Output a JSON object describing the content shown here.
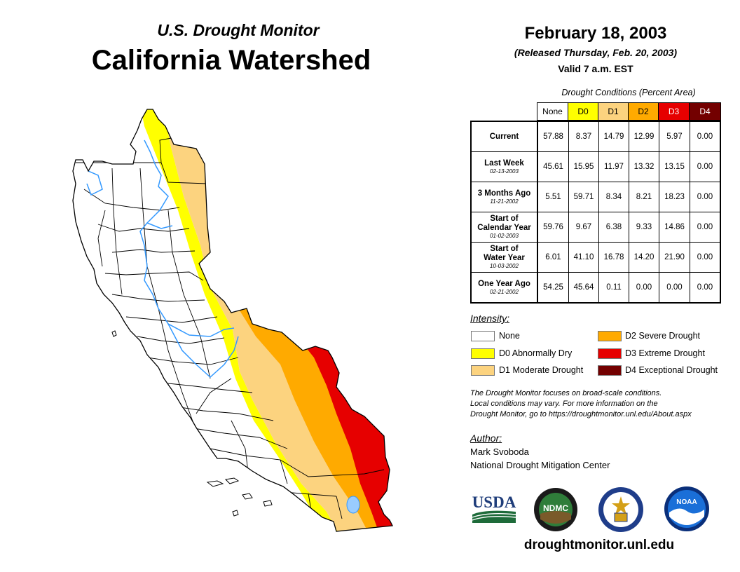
{
  "header": {
    "subtitle": "U.S. Drought Monitor",
    "title": "California Watershed",
    "date": "February 18, 2003",
    "released": "(Released Thursday, Feb. 20, 2003)",
    "valid": "Valid 7 a.m. EST"
  },
  "table": {
    "caption": "Drought Conditions (Percent Area)",
    "columns": [
      {
        "label": "None",
        "color": "#ffffff"
      },
      {
        "label": "D0",
        "color": "#ffff00"
      },
      {
        "label": "D1",
        "color": "#fcd37f"
      },
      {
        "label": "D2",
        "color": "#ffaa00"
      },
      {
        "label": "D3",
        "color": "#e60000"
      },
      {
        "label": "D4",
        "color": "#730000"
      }
    ],
    "rows": [
      {
        "label": "Current",
        "date": "",
        "values": [
          "57.88",
          "8.37",
          "14.79",
          "12.99",
          "5.97",
          "0.00"
        ]
      },
      {
        "label": "Last Week",
        "date": "02-13-2003",
        "values": [
          "45.61",
          "15.95",
          "11.97",
          "13.32",
          "13.15",
          "0.00"
        ]
      },
      {
        "label": "3 Months Ago",
        "date": "11-21-2002",
        "values": [
          "5.51",
          "59.71",
          "8.34",
          "8.21",
          "18.23",
          "0.00"
        ]
      },
      {
        "label": "Start of Calendar Year",
        "date": "01-02-2003",
        "values": [
          "59.76",
          "9.67",
          "6.38",
          "9.33",
          "14.86",
          "0.00"
        ]
      },
      {
        "label": "Start of Water Year",
        "date": "10-03-2002",
        "values": [
          "6.01",
          "41.10",
          "16.78",
          "14.20",
          "21.90",
          "0.00"
        ]
      },
      {
        "label": "One Year Ago",
        "date": "02-21-2002",
        "values": [
          "54.25",
          "45.64",
          "0.11",
          "0.00",
          "0.00",
          "0.00"
        ]
      }
    ]
  },
  "legend": {
    "title": "Intensity:",
    "items": [
      {
        "label": "None",
        "color": "#ffffff"
      },
      {
        "label": "D0 Abnormally Dry",
        "color": "#ffff00"
      },
      {
        "label": "D1 Moderate Drought",
        "color": "#fcd37f"
      },
      {
        "label": "D2 Severe Drought",
        "color": "#ffaa00"
      },
      {
        "label": "D3 Extreme Drought",
        "color": "#e60000"
      },
      {
        "label": "D4 Exceptional Drought",
        "color": "#730000"
      }
    ]
  },
  "note": {
    "line1": "The Drought Monitor focuses on broad-scale conditions.",
    "line2": "Local conditions may vary. For more information on the",
    "line3": "Drought Monitor, go to https://droughtmonitor.unl.edu/About.aspx"
  },
  "author": {
    "title": "Author:",
    "name": "Mark Svoboda",
    "org": "National Drought Mitigation Center"
  },
  "logos": {
    "usda": "USDA",
    "ndmc": "NDMC",
    "noaa": "NOAA"
  },
  "site": "droughtmonitor.unl.edu",
  "colors": {
    "river": "#3399ff",
    "lake": "#99ccff"
  }
}
